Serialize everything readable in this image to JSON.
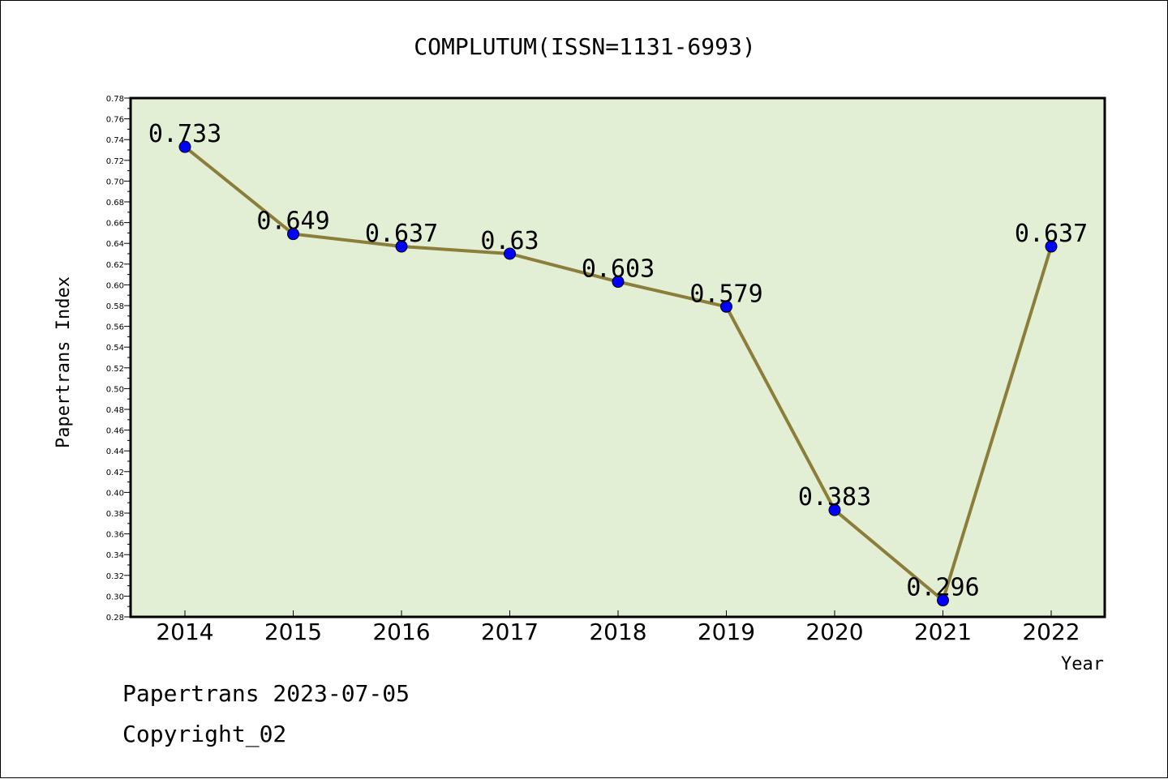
{
  "chart_data": {
    "type": "line",
    "title": "COMPLUTUM(ISSN=1131-6993)",
    "xlabel": "Year",
    "ylabel": "Papertrans Index",
    "categories": [
      "2014",
      "2015",
      "2016",
      "2017",
      "2018",
      "2019",
      "2020",
      "2021",
      "2022"
    ],
    "values": [
      0.733,
      0.649,
      0.637,
      0.63,
      0.603,
      0.579,
      0.383,
      0.296,
      0.637
    ],
    "data_labels": [
      "0.733",
      "0.649",
      "0.637",
      "0.63",
      "0.603",
      "0.579",
      "0.383",
      "0.296",
      "0.637"
    ],
    "ylim": [
      0.28,
      0.78
    ],
    "y_ticks": [
      "0.28",
      "0.30",
      "0.32",
      "0.34",
      "0.36",
      "0.38",
      "0.40",
      "0.42",
      "0.44",
      "0.46",
      "0.48",
      "0.50",
      "0.52",
      "0.54",
      "0.56",
      "0.58",
      "0.60",
      "0.62",
      "0.64",
      "0.66",
      "0.68",
      "0.70",
      "0.72",
      "0.74",
      "0.76",
      "0.78"
    ],
    "grid": false,
    "colors": {
      "plot_background": "#e2efd5",
      "line": "#8b7d3a",
      "marker": "#0000ff"
    }
  },
  "footer": {
    "line1": "Papertrans 2023-07-05",
    "line2": "Copyright_02"
  }
}
